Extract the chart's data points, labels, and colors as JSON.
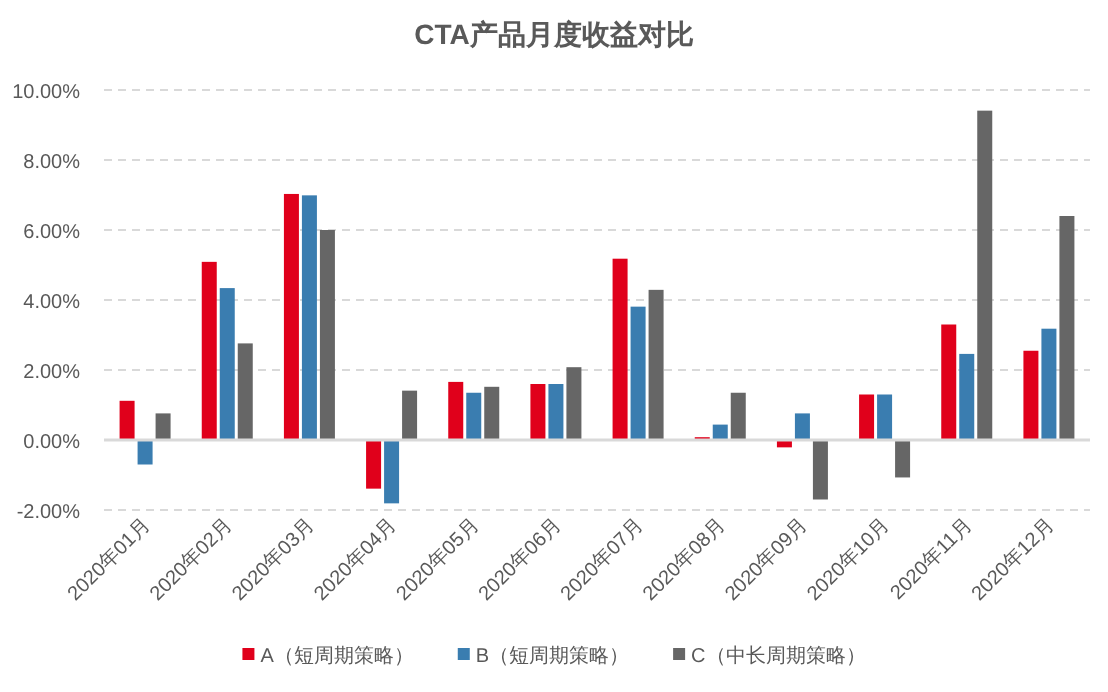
{
  "chart_data": {
    "type": "bar",
    "title": "CTA产品月度收益对比",
    "categories": [
      "2020年01月",
      "2020年02月",
      "2020年03月",
      "2020年04月",
      "2020年05月",
      "2020年06月",
      "2020年07月",
      "2020年08月",
      "2020年09月",
      "2020年10月",
      "2020年11月",
      "2020年12月"
    ],
    "series": [
      {
        "name": "A（短周期策略）",
        "color": "#e0001b",
        "values": [
          1.12,
          5.09,
          7.03,
          -1.39,
          1.66,
          1.6,
          5.18,
          0.08,
          -0.21,
          1.3,
          3.3,
          2.55
        ]
      },
      {
        "name": "B（短周期策略）",
        "color": "#3a7db0",
        "values": [
          -0.7,
          4.34,
          6.99,
          -1.81,
          1.35,
          1.6,
          3.81,
          0.44,
          0.76,
          1.3,
          2.46,
          3.18
        ]
      },
      {
        "name": "C（中长周期策略）",
        "color": "#666666",
        "values": [
          0.76,
          2.76,
          6.0,
          1.41,
          1.52,
          2.08,
          4.29,
          1.35,
          -1.7,
          -1.07,
          9.41,
          6.4
        ]
      }
    ],
    "ylim": [
      -2,
      10
    ],
    "yticks": [
      {
        "value": -2,
        "label": "-2.00%"
      },
      {
        "value": 0,
        "label": "0.00%"
      },
      {
        "value": 2,
        "label": "2.00%"
      },
      {
        "value": 4,
        "label": "4.00%"
      },
      {
        "value": 6,
        "label": "6.00%"
      },
      {
        "value": 8,
        "label": "8.00%"
      },
      {
        "value": 10,
        "label": "10.00%"
      }
    ],
    "grid": "y",
    "legend": "bottom"
  }
}
